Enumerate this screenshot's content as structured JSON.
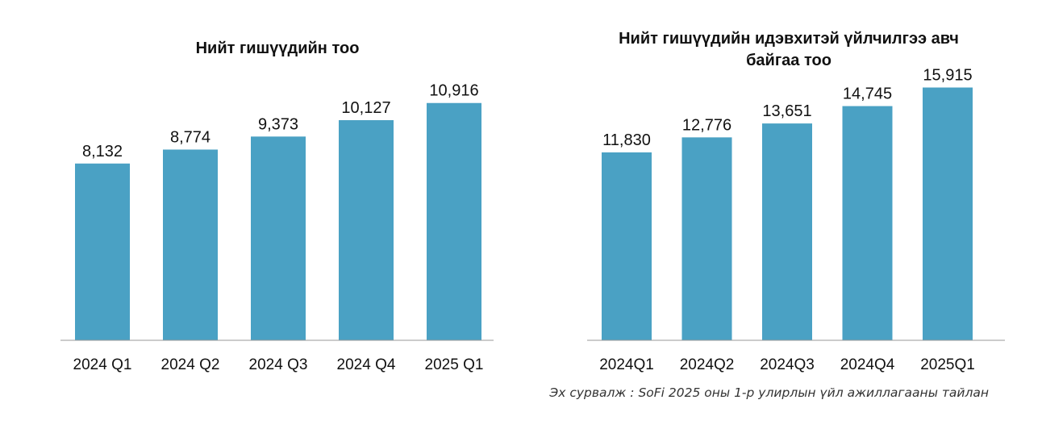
{
  "chart_data": [
    {
      "type": "bar",
      "title": "Нийт гишүүдийн тоо",
      "categories": [
        "2024 Q1",
        "2024 Q2",
        "2024 Q3",
        "2024 Q4",
        "2025 Q1"
      ],
      "values": [
        8132,
        8774,
        9373,
        10127,
        10916
      ],
      "value_labels": [
        "8,132",
        "8,774",
        "9,373",
        "10,127",
        "10,916"
      ],
      "ylim": [
        0,
        11500
      ],
      "grid": false,
      "color": "#4aa1c4"
    },
    {
      "type": "bar",
      "title_lines": [
        "Нийт гишүүдийн идэвхитэй үйлчилгээ авч",
        "байгаа тоо"
      ],
      "categories": [
        "2024Q1",
        "2024Q2",
        "2024Q3",
        "2024Q4",
        "2025Q1"
      ],
      "values": [
        11830,
        12776,
        13651,
        14745,
        15915
      ],
      "value_labels": [
        "11,830",
        "12,776",
        "13,651",
        "14,745",
        "15,915"
      ],
      "ylim": [
        0,
        16500
      ],
      "grid": false,
      "color": "#4aa1c4"
    }
  ],
  "source_note": "Эх сурвалж : SoFi 2025 оны 1-р улирлын үйл ажиллагааны тайлан"
}
